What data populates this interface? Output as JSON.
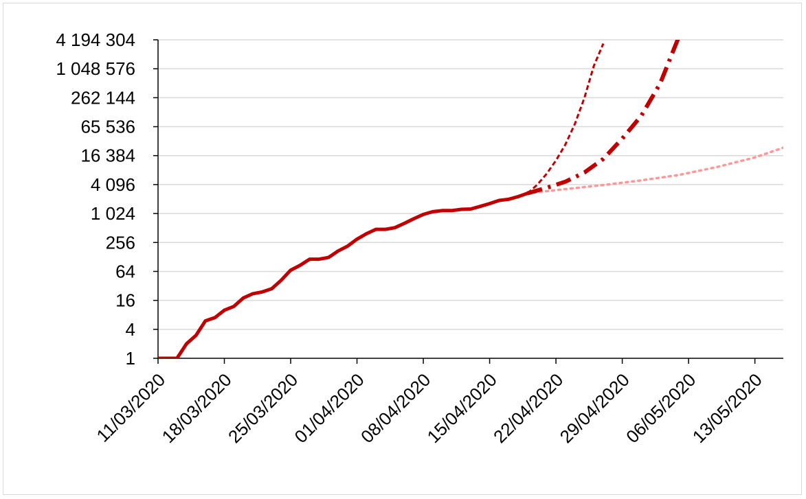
{
  "chart_data": {
    "type": "line",
    "title": "",
    "xlabel": "",
    "ylabel": "",
    "y_scale": "log2",
    "ylim": [
      1,
      4194304
    ],
    "xlim": [
      "2020-03-11",
      "2020-05-16"
    ],
    "grid": "horizontal",
    "legend": "none",
    "y_ticks": [
      1,
      4,
      16,
      64,
      256,
      1024,
      4096,
      16384,
      65536,
      262144,
      1048576,
      4194304
    ],
    "y_tick_labels": [
      "1",
      "4",
      "16",
      "64",
      "256",
      "1 024",
      "4 096",
      "16 384",
      "65 536",
      "262 144",
      "1 048 576",
      "4 194 304"
    ],
    "x_ticks": [
      "2020-03-11",
      "2020-03-18",
      "2020-03-25",
      "2020-04-01",
      "2020-04-08",
      "2020-04-15",
      "2020-04-22",
      "2020-04-29",
      "2020-05-06",
      "2020-05-13"
    ],
    "x_tick_labels": [
      "11/03/2020",
      "18/03/2020",
      "25/03/2020",
      "01/04/2020",
      "08/04/2020",
      "15/04/2020",
      "22/04/2020",
      "29/04/2020",
      "06/05/2020",
      "13/05/2020"
    ],
    "series": [
      {
        "style": "solid",
        "color": "#c00000",
        "x": [
          "2020-03-11",
          "2020-03-12",
          "2020-03-13",
          "2020-03-14",
          "2020-03-15",
          "2020-03-16",
          "2020-03-17",
          "2020-03-18",
          "2020-03-19",
          "2020-03-20",
          "2020-03-21",
          "2020-03-22",
          "2020-03-23",
          "2020-03-24",
          "2020-03-25",
          "2020-03-26",
          "2020-03-27",
          "2020-03-28",
          "2020-03-29",
          "2020-03-30",
          "2020-03-31",
          "2020-04-01",
          "2020-04-02",
          "2020-04-03",
          "2020-04-04",
          "2020-04-05",
          "2020-04-06",
          "2020-04-07",
          "2020-04-08",
          "2020-04-09",
          "2020-04-10",
          "2020-04-11",
          "2020-04-12",
          "2020-04-13",
          "2020-04-14",
          "2020-04-15",
          "2020-04-16",
          "2020-04-17",
          "2020-04-18",
          "2020-04-19"
        ],
        "y": [
          1,
          1,
          1,
          2,
          3,
          6,
          7,
          10,
          12,
          18,
          22,
          24,
          28,
          42,
          68,
          86,
          115,
          115,
          125,
          170,
          215,
          300,
          390,
          480,
          480,
          520,
          640,
          800,
          980,
          1120,
          1180,
          1180,
          1250,
          1270,
          1440,
          1650,
          1920,
          2030,
          2300,
          2700
        ]
      },
      {
        "style": "short-dash",
        "color": "#c00000",
        "x": [
          "2020-04-19",
          "2020-04-20",
          "2020-04-21",
          "2020-04-22",
          "2020-04-23",
          "2020-04-24",
          "2020-04-25",
          "2020-04-26",
          "2020-04-27"
        ],
        "y": [
          2700,
          4000,
          6800,
          13000,
          28000,
          75000,
          260000,
          1200000,
          3500000
        ]
      },
      {
        "style": "long-dash",
        "color": "#c00000",
        "x": [
          "2020-04-19",
          "2020-04-21",
          "2020-04-23",
          "2020-04-25",
          "2020-04-27",
          "2020-04-29",
          "2020-05-01",
          "2020-05-03",
          "2020-05-05"
        ],
        "y": [
          2700,
          3500,
          4700,
          7300,
          14000,
          37000,
          110000,
          520000,
          5000000
        ]
      },
      {
        "style": "dotted",
        "color": "#ff9999",
        "x": [
          "2020-04-19",
          "2020-04-23",
          "2020-04-27",
          "2020-05-01",
          "2020-05-05",
          "2020-05-09",
          "2020-05-13",
          "2020-05-16"
        ],
        "y": [
          2700,
          3300,
          4000,
          5000,
          6500,
          9500,
          15000,
          24000
        ]
      }
    ]
  }
}
